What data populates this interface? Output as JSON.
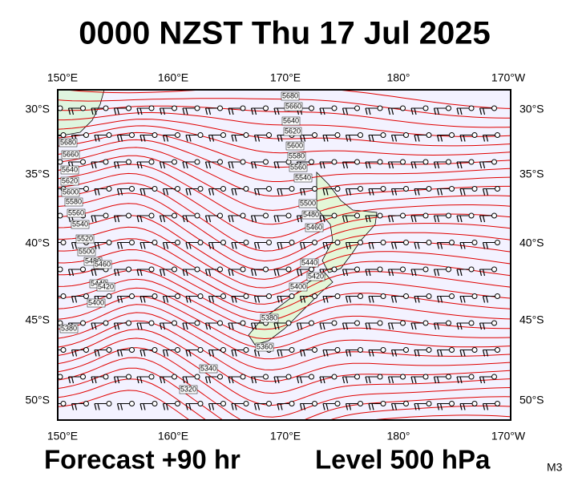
{
  "header": {
    "title": "0000 NZST Thu 17 Jul 2025"
  },
  "map": {
    "lon_labels": [
      "150°E",
      "160°E",
      "170°E",
      "180°",
      "170°W"
    ],
    "lat_labels": [
      "30°S",
      "35°S",
      "40°S",
      "45°S",
      "50°S"
    ],
    "contour_labels": [
      "5680",
      "5660",
      "5640",
      "5620",
      "5600",
      "5580",
      "5560",
      "5540",
      "5500",
      "5480",
      "5460",
      "5440",
      "5420",
      "5400",
      "5380",
      "5360",
      "5340",
      "5320",
      "5680",
      "5660",
      "5640",
      "5620",
      "5600",
      "5580",
      "5560",
      "5540",
      "5520",
      "5500",
      "5480",
      "5460",
      "5440",
      "5420",
      "5400",
      "5380"
    ]
  },
  "footer": {
    "forecast": "Forecast +90 hr",
    "level": "Level 500 hPa",
    "code": "M3"
  }
}
